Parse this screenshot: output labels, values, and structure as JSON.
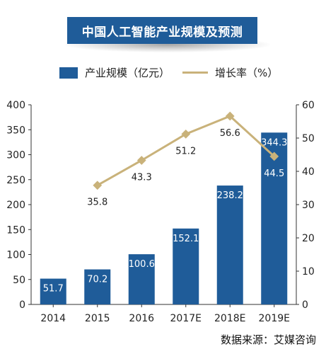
{
  "title": "中国人工智能产业规模及预测",
  "legend": {
    "bar_label": "产业规模（亿元）",
    "line_label": "增长率（%）"
  },
  "source": "数据来源：艾媒咨询",
  "colors": {
    "bar": "#1f5c99",
    "line": "#c9b27a",
    "title_bg": "#1f5c99"
  },
  "chart_data": {
    "type": "bar",
    "categories": [
      "2014",
      "2015",
      "2016",
      "2017E",
      "2018E",
      "2019E"
    ],
    "series": [
      {
        "name": "产业规模（亿元）",
        "type": "bar",
        "axis": "left",
        "values": [
          51.7,
          70.2,
          100.6,
          152.1,
          238.2,
          344.3
        ]
      },
      {
        "name": "增长率（%）",
        "type": "line",
        "axis": "right",
        "values": [
          null,
          35.8,
          43.3,
          51.2,
          56.6,
          44.5
        ]
      }
    ],
    "ylim": [
      0,
      400
    ],
    "yticks": [
      0,
      50,
      100,
      150,
      200,
      250,
      300,
      350,
      400
    ],
    "y2lim": [
      0,
      60
    ],
    "y2ticks": [
      0,
      10,
      20,
      30,
      40,
      50,
      60
    ],
    "grid": false,
    "legend_position": "top"
  }
}
